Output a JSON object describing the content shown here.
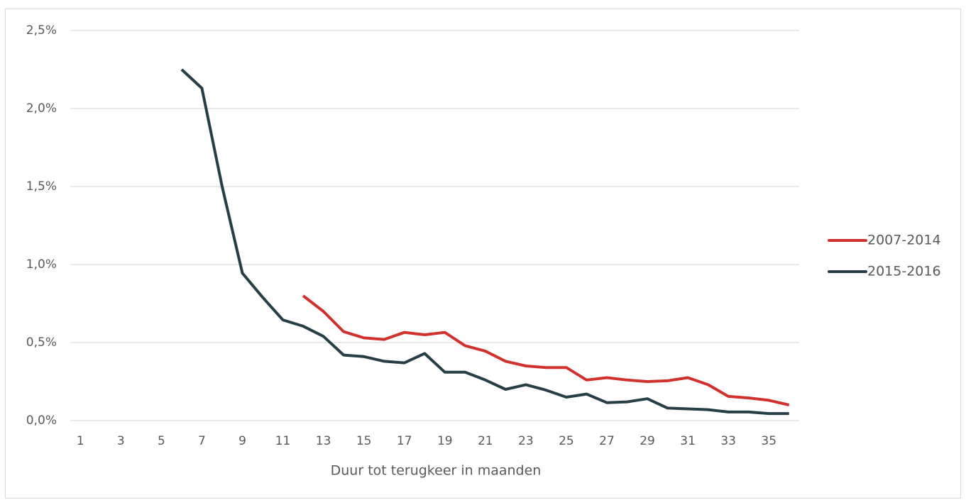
{
  "chart_data": {
    "type": "line",
    "x_label": "Duur tot terugkeer in maanden",
    "x": [
      1,
      2,
      3,
      4,
      5,
      6,
      7,
      8,
      9,
      10,
      11,
      12,
      13,
      14,
      15,
      16,
      17,
      18,
      19,
      20,
      21,
      22,
      23,
      24,
      25,
      26,
      27,
      28,
      29,
      30,
      31,
      32,
      33,
      34,
      35,
      36
    ],
    "xlim": [
      0.5,
      36.5
    ],
    "xticks": [
      1,
      3,
      5,
      7,
      9,
      11,
      13,
      15,
      17,
      19,
      21,
      23,
      25,
      27,
      29,
      31,
      33,
      35
    ],
    "ylim": [
      0,
      2.5
    ],
    "yticks": [
      {
        "value": 0,
        "label": "0,0%"
      },
      {
        "value": 0.5,
        "label": "0,5%"
      },
      {
        "value": 1,
        "label": "1,0%"
      },
      {
        "value": 1.5,
        "label": "1,5%"
      },
      {
        "value": 2,
        "label": "2,0%"
      },
      {
        "value": 2.5,
        "label": "2,5%"
      }
    ],
    "grid": true,
    "legend": "right",
    "series": [
      {
        "name": "2007-2014",
        "color": "#d0312d",
        "values": [
          null,
          null,
          null,
          null,
          null,
          null,
          null,
          null,
          null,
          null,
          null,
          0.8,
          0.7,
          0.57,
          0.53,
          0.52,
          0.565,
          0.55,
          0.565,
          0.48,
          0.445,
          0.38,
          0.35,
          0.34,
          0.34,
          0.26,
          0.275,
          0.26,
          0.25,
          0.255,
          0.275,
          0.23,
          0.155,
          0.145,
          0.13,
          0.1
        ]
      },
      {
        "name": "2015-2016",
        "color": "#263f47",
        "values": [
          null,
          null,
          null,
          null,
          null,
          2.25,
          2.13,
          1.5,
          0.945,
          0.79,
          0.645,
          0.605,
          0.54,
          0.42,
          0.41,
          0.38,
          0.37,
          0.43,
          0.31,
          0.31,
          0.26,
          0.2,
          0.23,
          0.195,
          0.15,
          0.17,
          0.115,
          0.12,
          0.14,
          0.08,
          0.075,
          0.07,
          0.055,
          0.055,
          0.045,
          0.045
        ]
      }
    ]
  }
}
